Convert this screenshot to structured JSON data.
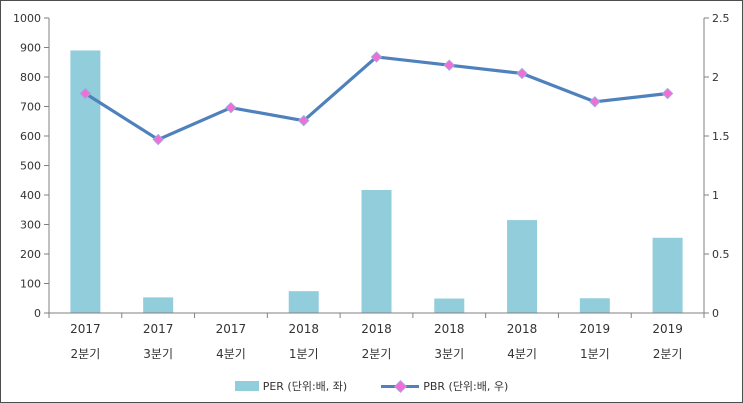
{
  "figure": {
    "background": "#FFFFFF",
    "border_color": "#4D4D4D"
  },
  "chart_data": {
    "type": "bar",
    "subtype": "combo-bar-line-dual-axis",
    "title": "",
    "xlabel": "",
    "ylabel_left": "",
    "ylabel_right": "",
    "grid": false,
    "legend_position": "bottom",
    "categories": [
      "2017 2분기",
      "2017 3분기",
      "2017 4분기",
      "2018 1분기",
      "2018 2분기",
      "2018 3분기",
      "2018 4분기",
      "2019 1분기",
      "2019 2분기"
    ],
    "category_lines": [
      [
        "2017",
        "2분기"
      ],
      [
        "2017",
        "3분기"
      ],
      [
        "2017",
        "4분기"
      ],
      [
        "2018",
        "1분기"
      ],
      [
        "2018",
        "2분기"
      ],
      [
        "2018",
        "3분기"
      ],
      [
        "2018",
        "4분기"
      ],
      [
        "2019",
        "1분기"
      ],
      [
        "2019",
        "2분기"
      ]
    ],
    "series": [
      {
        "name": "PER (단위:배, 좌)",
        "type": "bar",
        "axis": "left",
        "color": "#92CDDC",
        "values": [
          890,
          53,
          0,
          74,
          417,
          49,
          315,
          50,
          255
        ]
      },
      {
        "name": "PBR (단위:배, 우)",
        "type": "line",
        "axis": "right",
        "color": "#4F81BD",
        "marker": "diamond",
        "marker_color": "#F26DD8",
        "marker_edge_color": "#9FA8DA",
        "values": [
          1.86,
          1.47,
          1.74,
          1.63,
          2.17,
          2.1,
          2.03,
          1.79,
          1.86
        ]
      }
    ],
    "left_axis": {
      "min": 0,
      "max": 1000,
      "step": 100,
      "tick_labels": [
        "0",
        "100",
        "200",
        "300",
        "400",
        "500",
        "600",
        "700",
        "800",
        "900",
        "1000"
      ]
    },
    "right_axis": {
      "min": 0,
      "max": 2.5,
      "step": 0.5,
      "tick_labels": [
        "0",
        "0.5",
        "1",
        "1.5",
        "2",
        "2.5"
      ]
    },
    "axis_color": "#808080",
    "text_color": "#333333"
  },
  "legend": {
    "items": [
      {
        "label": "PER (단위:배, 좌)"
      },
      {
        "label": "PBR (단위:배, 우)"
      }
    ]
  }
}
